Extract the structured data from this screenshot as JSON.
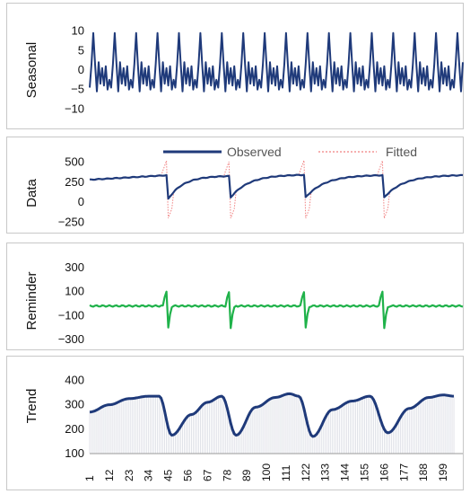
{
  "chart_data": [
    {
      "type": "line",
      "panel": "seasonal",
      "ylabel": "Seasonal",
      "ylim": [
        -12,
        12
      ],
      "yticks": [
        10,
        5,
        0,
        -5,
        -10
      ],
      "x_range": [
        1,
        210
      ],
      "period": 12,
      "pattern": [
        -4.5,
        1.5,
        9.5,
        1.5,
        -5.5,
        2.0,
        -3.5,
        0.5,
        -4.0,
        1.0,
        -5.0,
        -2.5
      ],
      "series": [
        {
          "name": "Seasonal",
          "color": "#1f3a7a"
        }
      ]
    },
    {
      "type": "line",
      "panel": "data",
      "ylabel": "Data",
      "ylim": [
        -300,
        560
      ],
      "yticks": [
        500,
        250,
        0,
        -250
      ],
      "legend_position": "top",
      "series": [
        {
          "name": "Observed",
          "color": "#1f3a7a",
          "style": "solid"
        },
        {
          "name": "Fitted",
          "color": "#f08080",
          "style": "dotted"
        }
      ],
      "cycles": [
        {
          "start": 1,
          "end": 44,
          "from": 280,
          "to": 335,
          "dip": null
        },
        {
          "start": 45,
          "end": 79,
          "from": 40,
          "to": 330,
          "dip": -200
        },
        {
          "start": 80,
          "end": 121,
          "from": 60,
          "to": 345,
          "dip": -200
        },
        {
          "start": 122,
          "end": 165,
          "from": 60,
          "to": 340,
          "dip": -200
        },
        {
          "start": 166,
          "end": 210,
          "from": 60,
          "to": 340,
          "dip": -200
        }
      ]
    },
    {
      "type": "line",
      "panel": "reminder",
      "ylabel": "Reminder",
      "ylim": [
        -330,
        360
      ],
      "yticks": [
        300,
        100,
        -100,
        -300
      ],
      "series": [
        {
          "name": "Reminder",
          "color": "#1fb24a"
        }
      ],
      "spikes": [
        {
          "at": 44,
          "peak": 100,
          "trough": -200
        },
        {
          "at": 79,
          "peak": 95,
          "trough": -205
        },
        {
          "at": 121,
          "peak": 95,
          "trough": -200
        },
        {
          "at": 165,
          "peak": 100,
          "trough": -205
        }
      ],
      "baseline": -20
    },
    {
      "type": "line",
      "panel": "trend",
      "ylabel": "Trend",
      "ylim": [
        100,
        420
      ],
      "yticks": [
        400,
        300,
        200,
        100
      ],
      "series": [
        {
          "name": "Trend",
          "color": "#1f3a7a"
        }
      ],
      "segments": [
        {
          "x": 1,
          "y": 270
        },
        {
          "x": 12,
          "y": 300
        },
        {
          "x": 23,
          "y": 325
        },
        {
          "x": 34,
          "y": 335
        },
        {
          "x": 40,
          "y": 335
        },
        {
          "x": 47,
          "y": 175
        },
        {
          "x": 58,
          "y": 260
        },
        {
          "x": 67,
          "y": 310
        },
        {
          "x": 75,
          "y": 335
        },
        {
          "x": 83,
          "y": 175
        },
        {
          "x": 94,
          "y": 290
        },
        {
          "x": 105,
          "y": 330
        },
        {
          "x": 113,
          "y": 345
        },
        {
          "x": 118,
          "y": 335
        },
        {
          "x": 126,
          "y": 170
        },
        {
          "x": 137,
          "y": 280
        },
        {
          "x": 148,
          "y": 315
        },
        {
          "x": 158,
          "y": 335
        },
        {
          "x": 168,
          "y": 185
        },
        {
          "x": 180,
          "y": 285
        },
        {
          "x": 191,
          "y": 330
        },
        {
          "x": 199,
          "y": 340
        },
        {
          "x": 205,
          "y": 335
        }
      ],
      "xticks": [
        "1",
        "12",
        "23",
        "34",
        "45",
        "56",
        "67",
        "78",
        "89",
        "100",
        "111",
        "122",
        "133",
        "144",
        "155",
        "166",
        "177",
        "188",
        "199"
      ]
    }
  ]
}
